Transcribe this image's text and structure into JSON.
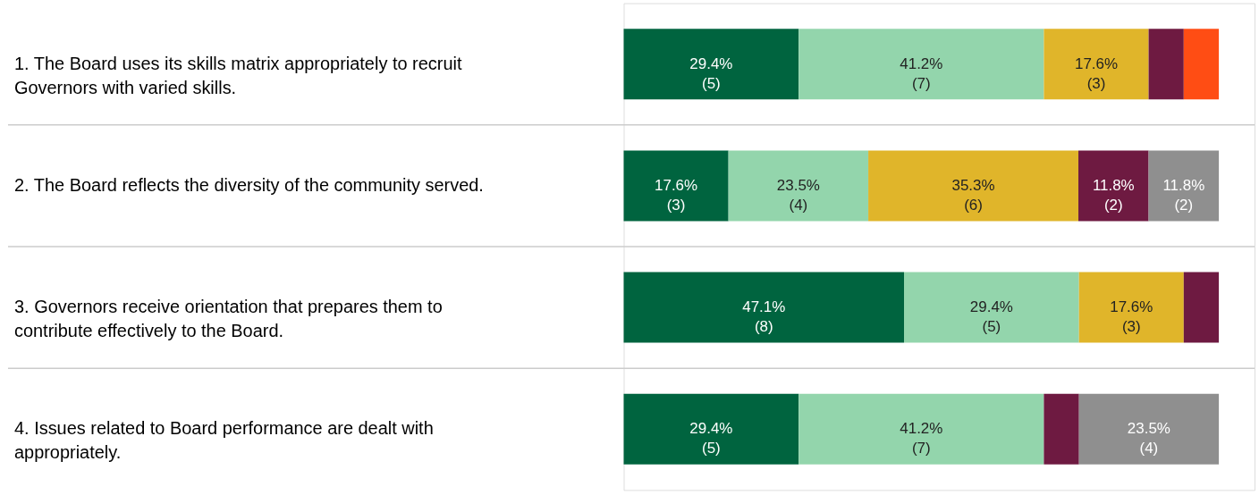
{
  "chart_data": {
    "type": "bar",
    "orientation": "horizontal",
    "stacked": true,
    "categories": [
      "1. The Board uses its skills matrix appropriately to recruit Governors with varied skills.",
      "2. The Board reflects the diversity of the community served.",
      "3. Governors receive orientation that prepares them to contribute effectively to the Board.",
      "4. Issues related to Board performance are dealt with appropriately."
    ],
    "series": [
      {
        "color": "#00643f",
        "values": [
          29.4,
          17.6,
          47.1,
          29.4
        ],
        "value_labels": [
          "29.4%\n(5)",
          "17.6%\n(3)",
          "47.1%\n(8)",
          "29.4%\n(5)"
        ]
      },
      {
        "color": "#93d5ac",
        "values": [
          41.2,
          23.5,
          29.4,
          41.2
        ],
        "value_labels": [
          "41.2%\n(7)",
          "23.5%\n(4)",
          "29.4%\n(5)",
          "41.2%\n(7)"
        ]
      },
      {
        "color": "#e0b52a",
        "values": [
          17.6,
          35.3,
          17.6,
          null
        ],
        "value_labels": [
          "17.6%\n(3)",
          "35.3%\n(6)",
          "17.6%\n(3)",
          null
        ]
      },
      {
        "color": "#6e1a41",
        "values": [
          5.9,
          11.8,
          5.9,
          5.9
        ],
        "value_labels": [
          null,
          "11.8%\n(2)",
          null,
          null
        ]
      },
      {
        "color": "#ff4d14",
        "values": [
          5.9,
          null,
          null,
          null
        ],
        "value_labels": [
          null,
          null,
          null,
          null
        ]
      },
      {
        "color": "#8f8f8f",
        "values": [
          null,
          11.8,
          null,
          23.5
        ],
        "value_labels": [
          null,
          "11.8%\n(2)",
          null,
          "23.5%\n(4)"
        ]
      }
    ],
    "tick_labels": false,
    "grid": "y"
  }
}
